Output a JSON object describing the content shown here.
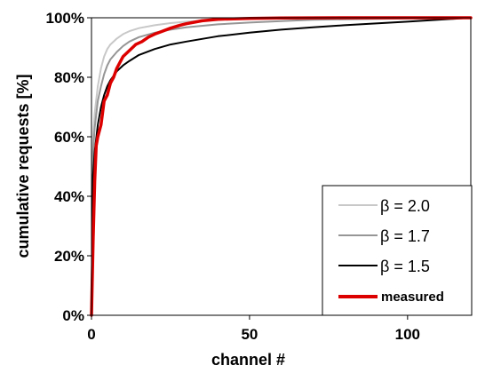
{
  "chart_data": {
    "type": "line",
    "title": "",
    "xlabel": "channel #",
    "ylabel": "cumulative requests [%]",
    "xlim": [
      0,
      120
    ],
    "ylim": [
      0,
      100
    ],
    "x_ticks": [
      0,
      50,
      100
    ],
    "x_tick_labels": [
      "0",
      "50",
      "100"
    ],
    "y_ticks": [
      0,
      20,
      40,
      60,
      80,
      100
    ],
    "y_tick_labels": [
      "0%",
      "20%",
      "40%",
      "60%",
      "80%",
      "100%"
    ],
    "grid": false,
    "legend_position": "bottom-right",
    "series": [
      {
        "name": "β = 2.0",
        "color": "#c8c8c8",
        "x": [
          0,
          0.5,
          1,
          2,
          3,
          4,
          5,
          6,
          8,
          10,
          12,
          15,
          20,
          25,
          30,
          40,
          50,
          60,
          80,
          100,
          120
        ],
        "y": [
          0,
          60,
          68,
          77,
          83,
          87,
          89.5,
          91,
          93,
          94.5,
          95.5,
          96.5,
          97.5,
          98.2,
          98.7,
          99.3,
          99.6,
          99.8,
          99.9,
          100,
          100
        ]
      },
      {
        "name": "β = 1.7",
        "color": "#969696",
        "x": [
          0,
          0.5,
          1,
          2,
          3,
          4,
          5,
          6,
          8,
          10,
          12,
          15,
          20,
          25,
          30,
          40,
          50,
          60,
          70,
          80,
          100,
          120
        ],
        "y": [
          0,
          55,
          63,
          72,
          77,
          81,
          84,
          86,
          88.5,
          90.5,
          92,
          93.5,
          95,
          96,
          96.8,
          97.8,
          98.4,
          98.9,
          99.3,
          99.5,
          99.8,
          100
        ]
      },
      {
        "name": "β = 1.5",
        "color": "#000000",
        "x": [
          0,
          0.5,
          1,
          2,
          3,
          4,
          5,
          6,
          8,
          10,
          12,
          15,
          20,
          25,
          30,
          40,
          50,
          60,
          70,
          80,
          100,
          120
        ],
        "y": [
          0,
          47,
          55,
          64,
          70,
          74,
          77,
          79,
          82,
          84,
          85.5,
          87.5,
          89.5,
          91,
          92,
          93.8,
          95,
          96,
          96.8,
          97.5,
          98.7,
          100
        ]
      },
      {
        "name": "measured",
        "color": "#dd0000",
        "x": [
          0,
          0.5,
          1,
          1.5,
          2,
          2.5,
          3,
          4,
          5,
          6,
          7,
          8,
          9,
          10,
          12,
          14,
          16,
          18,
          20,
          22,
          25,
          28,
          30,
          35,
          40,
          50,
          60,
          80,
          100,
          120
        ],
        "y": [
          0,
          25,
          45,
          57,
          60,
          62,
          64,
          72,
          74,
          78,
          80,
          83,
          85,
          87,
          89,
          91,
          92,
          93.5,
          94.5,
          95.3,
          96.5,
          97.5,
          98,
          99,
          99.5,
          99.8,
          99.9,
          100,
          100,
          100
        ]
      }
    ]
  }
}
